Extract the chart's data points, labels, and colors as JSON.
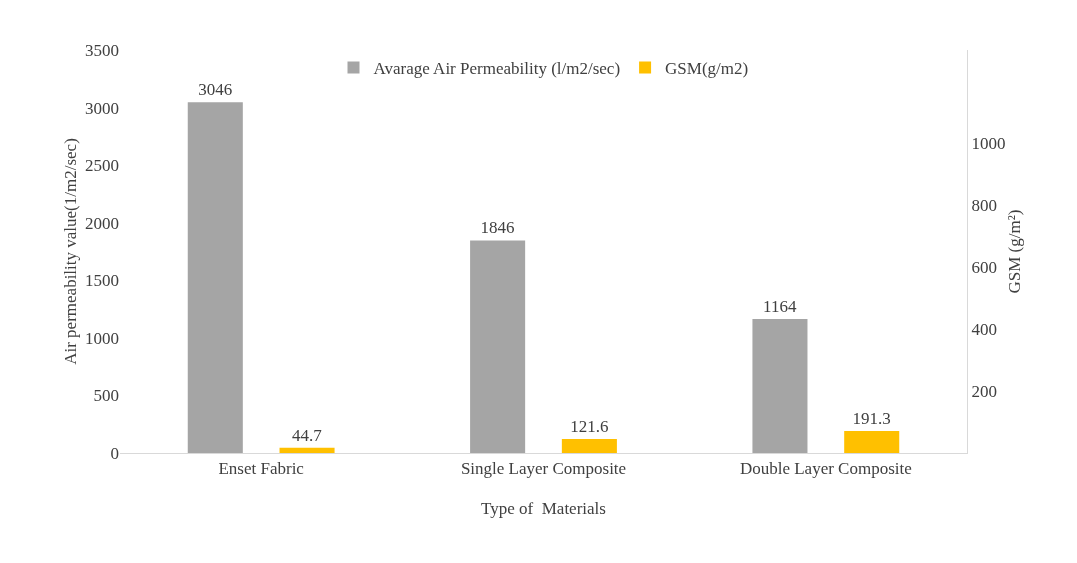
{
  "chart_data": {
    "type": "bar",
    "xlabel": "Type of  Materials",
    "ylabel": "Air permeability value(1/m2/sec)",
    "y2label": "GSM (g/m²)",
    "categories": [
      "Enset Fabric",
      "Single Layer Composite",
      "Double Layer Composite"
    ],
    "series": [
      {
        "name": "Avarage Air Permeability (l/m2/sec)",
        "color": "#a5a5a5",
        "values": [
          3046,
          1846,
          1164
        ]
      },
      {
        "name": "GSM(g/m2)",
        "color": "#ffc000",
        "values": [
          44.7,
          121.6,
          191.3
        ]
      }
    ],
    "ylim": [
      0,
      3500
    ],
    "yticks": [
      0,
      500,
      1000,
      1500,
      2000,
      2500,
      3000,
      3500
    ],
    "y2lim": [
      0,
      1300
    ],
    "y2ticks": [
      200,
      400,
      600,
      800,
      1000
    ],
    "data_labels": true,
    "grid": false,
    "legend": "top"
  }
}
